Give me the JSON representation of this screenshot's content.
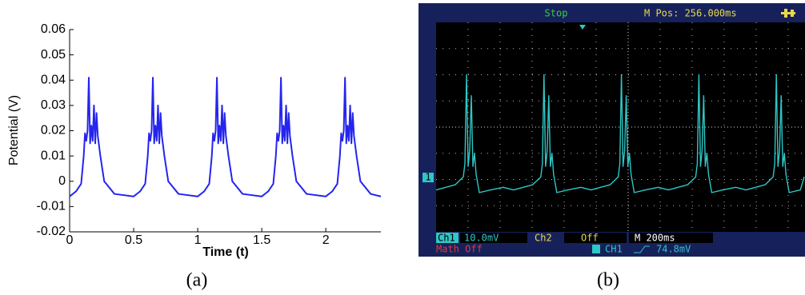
{
  "chart_data": [
    {
      "type": "line",
      "xlabel": "Time (t)",
      "ylabel": "Potential (V)",
      "caption": "(a)",
      "xlim": [
        0,
        2.43
      ],
      "ylim": [
        -0.02,
        0.06
      ],
      "xticks": [
        0,
        0.5,
        1,
        1.5,
        2
      ],
      "yticks": [
        -0.02,
        -0.01,
        0,
        0.01,
        0.02,
        0.03,
        0.04,
        0.05,
        0.06
      ],
      "x": [
        0,
        0.05,
        0.09,
        0.11,
        0.12,
        0.13,
        0.14,
        0.15,
        0.16,
        0.17,
        0.18,
        0.19,
        0.2,
        0.21,
        0.22,
        0.24,
        0.27,
        0.35,
        0.5,
        0.55,
        0.59,
        0.61,
        0.62,
        0.63,
        0.64,
        0.65,
        0.66,
        0.67,
        0.68,
        0.69,
        0.7,
        0.71,
        0.72,
        0.74,
        0.77,
        0.85,
        1,
        1.05,
        1.09,
        1.11,
        1.12,
        1.13,
        1.14,
        1.15,
        1.16,
        1.17,
        1.18,
        1.19,
        1.2,
        1.21,
        1.22,
        1.24,
        1.27,
        1.35,
        1.5,
        1.55,
        1.59,
        1.61,
        1.62,
        1.63,
        1.64,
        1.65,
        1.66,
        1.67,
        1.68,
        1.69,
        1.7,
        1.71,
        1.72,
        1.74,
        1.77,
        1.85,
        2,
        2.05,
        2.09,
        2.11,
        2.12,
        2.13,
        2.14,
        2.15,
        2.16,
        2.17,
        2.18,
        2.19,
        2.2,
        2.21,
        2.22,
        2.24,
        2.27,
        2.35,
        2.43
      ],
      "series": [
        {
          "color": "#2424f0",
          "values": [
            -0.006,
            -0.004,
            -0.001,
            0.01,
            0.019,
            0.016,
            0.02,
            0.041,
            0.015,
            0.022,
            0.016,
            0.03,
            0.015,
            0.027,
            0.018,
            0.01,
            0,
            -0.005,
            -0.006,
            -0.004,
            -0.001,
            0.01,
            0.019,
            0.016,
            0.02,
            0.041,
            0.015,
            0.022,
            0.016,
            0.03,
            0.015,
            0.027,
            0.018,
            0.01,
            0,
            -0.005,
            -0.006,
            -0.004,
            -0.001,
            0.01,
            0.019,
            0.016,
            0.02,
            0.041,
            0.015,
            0.022,
            0.016,
            0.03,
            0.015,
            0.027,
            0.018,
            0.01,
            0,
            -0.005,
            -0.006,
            -0.004,
            -0.001,
            0.01,
            0.019,
            0.016,
            0.02,
            0.041,
            0.015,
            0.022,
            0.016,
            0.03,
            0.015,
            0.027,
            0.018,
            0.01,
            0,
            -0.005,
            -0.006,
            -0.004,
            -0.001,
            0.01,
            0.019,
            0.016,
            0.02,
            0.041,
            0.015,
            0.022,
            0.016,
            0.03,
            0.015,
            0.027,
            0.018,
            0.01,
            0,
            -0.005,
            -0.006
          ]
        }
      ]
    },
    {
      "type": "line",
      "caption": "(b)",
      "status": "Stop",
      "position": "M Pos: 256.000ms",
      "channel_1": "Ch1",
      "channel_1_scale": "10.0mV",
      "channel_2": "Ch2",
      "channel_2_state": "Off",
      "timebase": "M 200ms",
      "math": "Math Off",
      "trigger_source": "CH1",
      "trigger_level": "74.8mV",
      "channel_marker": "1",
      "xlim": [
        0,
        11.5
      ],
      "ylim": [
        -4,
        4
      ],
      "x": [
        0,
        0.6,
        0.85,
        0.9,
        0.95,
        1,
        1.05,
        1.1,
        1.15,
        1.2,
        1.25,
        1.35,
        1.7,
        2.1,
        2.42,
        3.02,
        3.27,
        3.32,
        3.37,
        3.42,
        3.47,
        3.52,
        3.57,
        3.62,
        3.67,
        3.77,
        4.12,
        4.52,
        4.84,
        5.44,
        5.69,
        5.74,
        5.79,
        5.84,
        5.89,
        5.94,
        5.99,
        6.04,
        6.09,
        6.19,
        6.54,
        6.94,
        7.26,
        7.86,
        8.11,
        8.16,
        8.21,
        8.26,
        8.31,
        8.36,
        8.41,
        8.46,
        8.51,
        8.61,
        8.96,
        9.36,
        9.68,
        10.28,
        10.53,
        10.58,
        10.63,
        10.68,
        10.73,
        10.78,
        10.83,
        10.88,
        10.93,
        11.03,
        11.38,
        11.5
      ],
      "series": [
        {
          "color": "#2fc6c6",
          "values": [
            -2.4,
            -2.2,
            -1.9,
            -1.4,
            2,
            -1.5,
            -0.9,
            1.2,
            -1.5,
            -1,
            -1.8,
            -2.5,
            -2.4,
            -2.3,
            -2.4,
            -2.2,
            -1.9,
            -1.4,
            2,
            -1.5,
            -0.9,
            1.2,
            -1.5,
            -1,
            -1.8,
            -2.5,
            -2.4,
            -2.3,
            -2.4,
            -2.2,
            -1.9,
            -1.4,
            2,
            -1.5,
            -0.9,
            1.2,
            -1.5,
            -1,
            -1.8,
            -2.5,
            -2.4,
            -2.3,
            -2.4,
            -2.2,
            -1.9,
            -1.4,
            2,
            -1.5,
            -0.9,
            1.2,
            -1.5,
            -1,
            -1.8,
            -2.5,
            -2.4,
            -2.3,
            -2.4,
            -2.2,
            -1.9,
            -1.4,
            2,
            -1.5,
            -0.9,
            1.2,
            -1.5,
            -1,
            -1.8,
            -2.5,
            -2.4,
            -1.9
          ]
        }
      ]
    }
  ]
}
